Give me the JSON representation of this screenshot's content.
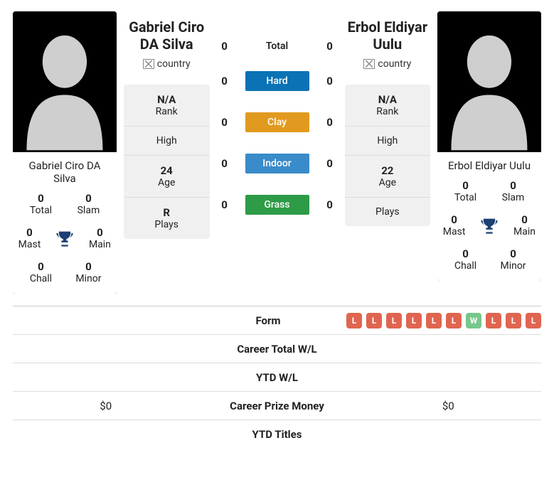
{
  "players": {
    "p1": {
      "name": "Gabriel Ciro DA Silva",
      "country_alt": "country",
      "card_stats": {
        "total": {
          "value": "0",
          "label": "Total"
        },
        "slam": {
          "value": "0",
          "label": "Slam"
        },
        "mast": {
          "value": "0",
          "label": "Mast"
        },
        "main": {
          "value": "0",
          "label": "Main"
        },
        "chall": {
          "value": "0",
          "label": "Chall"
        },
        "minor": {
          "value": "0",
          "label": "Minor"
        }
      },
      "info": {
        "rank": {
          "value": "N/A",
          "label": "Rank"
        },
        "high": {
          "value": "",
          "label": "High"
        },
        "age": {
          "value": "24",
          "label": "Age"
        },
        "plays": {
          "value": "R",
          "label": "Plays"
        }
      },
      "prize": "$0",
      "form": []
    },
    "p2": {
      "name": "Erbol Eldiyar Uulu",
      "country_alt": "country",
      "card_stats": {
        "total": {
          "value": "0",
          "label": "Total"
        },
        "slam": {
          "value": "0",
          "label": "Slam"
        },
        "mast": {
          "value": "0",
          "label": "Mast"
        },
        "main": {
          "value": "0",
          "label": "Main"
        },
        "chall": {
          "value": "0",
          "label": "Chall"
        },
        "minor": {
          "value": "0",
          "label": "Minor"
        }
      },
      "info": {
        "rank": {
          "value": "N/A",
          "label": "Rank"
        },
        "high": {
          "value": "",
          "label": "High"
        },
        "age": {
          "value": "22",
          "label": "Age"
        },
        "plays": {
          "value": "",
          "label": "Plays"
        }
      },
      "prize": "$0",
      "form": [
        "L",
        "L",
        "L",
        "L",
        "L",
        "L",
        "W",
        "L",
        "L",
        "L"
      ]
    }
  },
  "h2h": {
    "rows": [
      {
        "label": "Total",
        "pill": false,
        "color": "",
        "p1": "0",
        "p2": "0"
      },
      {
        "label": "Hard",
        "pill": true,
        "color": "#0b72b5",
        "p1": "0",
        "p2": "0"
      },
      {
        "label": "Clay",
        "pill": true,
        "color": "#e19a1f",
        "p1": "0",
        "p2": "0"
      },
      {
        "label": "Indoor",
        "pill": true,
        "color": "#3a8bc9",
        "p1": "0",
        "p2": "0"
      },
      {
        "label": "Grass",
        "pill": true,
        "color": "#2e9b47",
        "p1": "0",
        "p2": "0"
      }
    ]
  },
  "table_rows": [
    {
      "label": "Form"
    },
    {
      "label": "Career Total W/L"
    },
    {
      "label": "YTD W/L"
    },
    {
      "label": "Career Prize Money"
    },
    {
      "label": "YTD Titles"
    }
  ],
  "colors": {
    "trophy": "#1d3f72",
    "form_L": "#e06550",
    "form_W": "#76c78a"
  }
}
